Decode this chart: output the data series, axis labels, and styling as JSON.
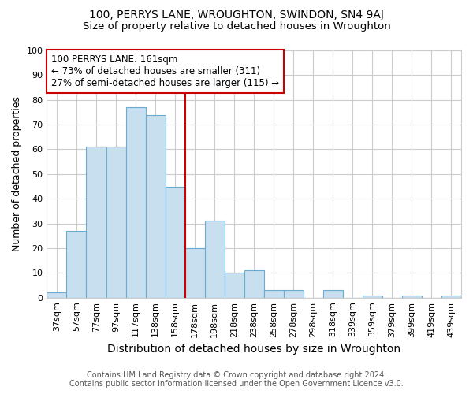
{
  "title1": "100, PERRYS LANE, WROUGHTON, SWINDON, SN4 9AJ",
  "title2": "Size of property relative to detached houses in Wroughton",
  "xlabel": "Distribution of detached houses by size in Wroughton",
  "ylabel": "Number of detached properties",
  "footnote1": "Contains HM Land Registry data © Crown copyright and database right 2024.",
  "footnote2": "Contains public sector information licensed under the Open Government Licence v3.0.",
  "bar_labels": [
    "37sqm",
    "57sqm",
    "77sqm",
    "97sqm",
    "117sqm",
    "138sqm",
    "158sqm",
    "178sqm",
    "198sqm",
    "218sqm",
    "238sqm",
    "258sqm",
    "278sqm",
    "298sqm",
    "318sqm",
    "339sqm",
    "359sqm",
    "379sqm",
    "399sqm",
    "419sqm",
    "439sqm"
  ],
  "bar_values": [
    2,
    27,
    61,
    61,
    77,
    74,
    45,
    20,
    31,
    10,
    11,
    3,
    3,
    0,
    3,
    0,
    1,
    0,
    1,
    0,
    1
  ],
  "bar_color": "#c8dff0",
  "bar_edge_color": "#6aabd2",
  "vline_color": "#cc0000",
  "vline_x": 6.5,
  "annotation_line1": "100 PERRYS LANE: 161sqm",
  "annotation_line2": "← 73% of detached houses are smaller (311)",
  "annotation_line3": "27% of semi-detached houses are larger (115) →",
  "annotation_box_edge": "#cc0000",
  "ylim": [
    0,
    100
  ],
  "yticks": [
    0,
    10,
    20,
    30,
    40,
    50,
    60,
    70,
    80,
    90,
    100
  ],
  "grid_color": "#cccccc",
  "background_color": "#ffffff",
  "title1_fontsize": 10,
  "title2_fontsize": 9.5,
  "xlabel_fontsize": 10,
  "ylabel_fontsize": 9,
  "tick_fontsize": 8,
  "annot_fontsize": 8.5
}
